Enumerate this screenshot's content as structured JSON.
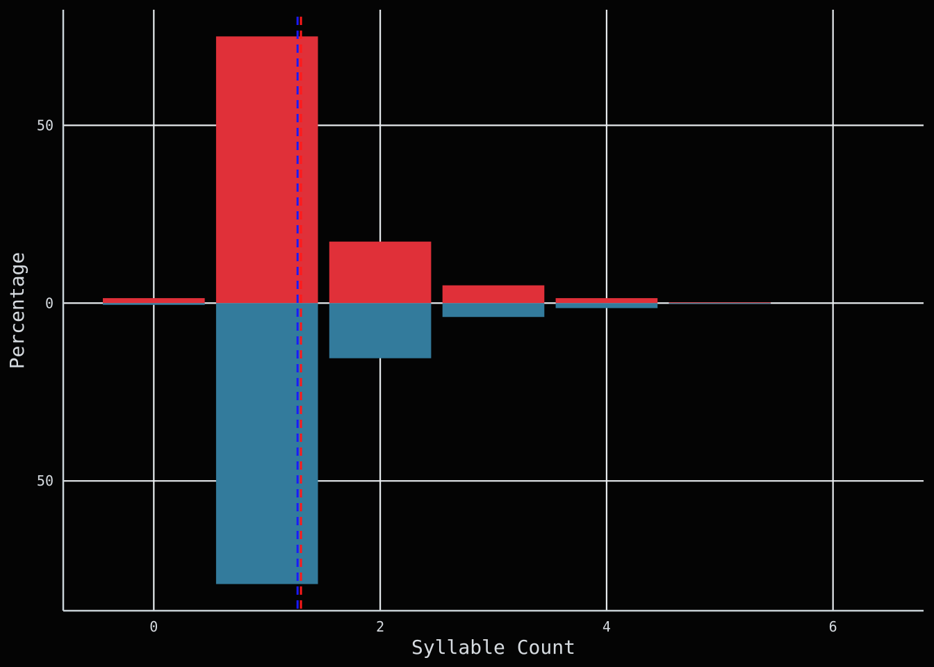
{
  "chart_data": {
    "type": "bar",
    "orientation": "mirrored",
    "xlabel": "Syllable Count",
    "ylabel": "Percentage",
    "xlim": [
      -0.8,
      6.8
    ],
    "ylim": [
      -86.5,
      82.5
    ],
    "x_ticks": [
      0,
      2,
      4,
      6
    ],
    "y_ticks": [
      {
        "value": 50,
        "label": "50"
      },
      {
        "value": 0,
        "label": "0"
      },
      {
        "value": -50,
        "label": "50"
      }
    ],
    "grid": true,
    "legend": "none",
    "bar_width": 0.9,
    "series": [
      {
        "direction": "up",
        "color": "#e03039",
        "x": [
          0,
          1,
          2,
          3,
          4,
          5
        ],
        "values": [
          1.4,
          75,
          17.3,
          5.0,
          1.4,
          0.2
        ]
      },
      {
        "direction": "down",
        "color": "#337b9c",
        "x": [
          0,
          1,
          2,
          3,
          4,
          5
        ],
        "values": [
          0.5,
          79,
          15.5,
          3.9,
          1.4,
          0.1
        ]
      }
    ],
    "reference_lines": [
      {
        "x": 1.27,
        "color": "#1a1aff",
        "style": "dashed"
      },
      {
        "x": 1.3,
        "color": "#ff1a1a",
        "style": "dashed"
      }
    ],
    "colors": {
      "background": "#040404",
      "grid": "#e8ecef",
      "axis": "#c9d3d8",
      "text": "#d6dbe0"
    }
  }
}
